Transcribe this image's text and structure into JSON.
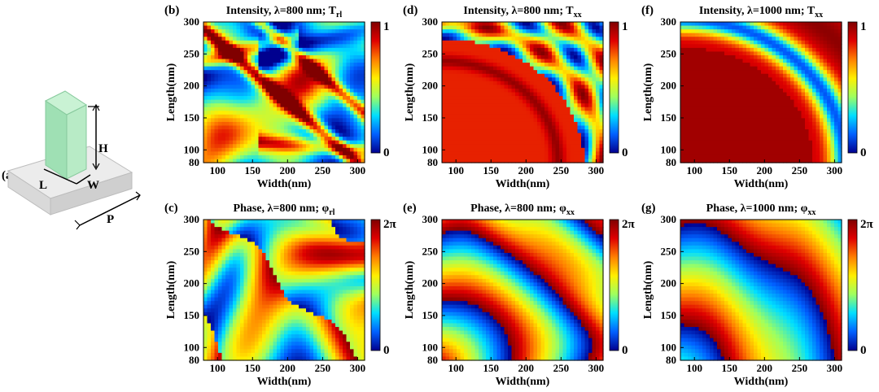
{
  "colormap": [
    "#00008f",
    "#0060ff",
    "#00dfff",
    "#9fff5f",
    "#ffef00",
    "#ff7f00",
    "#df0000",
    "#800000"
  ],
  "schematic": {
    "label": "(a)",
    "dims": {
      "h": "H",
      "l": "L",
      "w": "W",
      "p": "P"
    },
    "pillar_color": "#8fd9a8",
    "base_color": "#e6e6e6"
  },
  "chart_data": [
    {
      "id": "b",
      "type": "heatmap",
      "label": "(b)",
      "title": "Intensity, λ=800 nm; T",
      "title_sub": "rl",
      "xlabel": "Width(nm)",
      "ylabel": "Length(nm)",
      "xlim": [
        80,
        310
      ],
      "ylim": [
        80,
        300
      ],
      "x_ticks": [
        100,
        150,
        200,
        250,
        300
      ],
      "y_ticks": [
        80,
        100,
        150,
        200,
        250,
        300
      ],
      "colorbar": {
        "min_label": "0",
        "max_label": "1",
        "range": [
          0,
          1
        ]
      },
      "pattern": "b"
    },
    {
      "id": "d",
      "type": "heatmap",
      "label": "(d)",
      "title": "Intensity, λ=800 nm; T",
      "title_sub": "xx",
      "xlabel": "Width(nm)",
      "ylabel": "Length(nm)",
      "xlim": [
        80,
        310
      ],
      "ylim": [
        80,
        300
      ],
      "x_ticks": [
        100,
        150,
        200,
        250,
        300
      ],
      "y_ticks": [
        80,
        100,
        150,
        200,
        250,
        300
      ],
      "colorbar": {
        "min_label": "0",
        "max_label": "1",
        "range": [
          0,
          1
        ]
      },
      "pattern": "d"
    },
    {
      "id": "f",
      "type": "heatmap",
      "label": "(f)",
      "title": "Intensity, λ=1000 nm; T",
      "title_sub": "xx",
      "xlabel": "Width(nm)",
      "ylabel": "Length(nm)",
      "xlim": [
        80,
        310
      ],
      "ylim": [
        80,
        300
      ],
      "x_ticks": [
        100,
        150,
        200,
        250,
        300
      ],
      "y_ticks": [
        80,
        100,
        150,
        200,
        250,
        300
      ],
      "colorbar": {
        "min_label": "0",
        "max_label": "1",
        "range": [
          0,
          1
        ]
      },
      "pattern": "f"
    },
    {
      "id": "c",
      "type": "heatmap",
      "label": "(c)",
      "title": "Phase, λ=800 nm; φ",
      "title_sub": "rl",
      "xlabel": "Width(nm)",
      "ylabel": "Length(nm)",
      "xlim": [
        80,
        310
      ],
      "ylim": [
        80,
        300
      ],
      "x_ticks": [
        100,
        150,
        200,
        250,
        300
      ],
      "y_ticks": [
        80,
        100,
        150,
        200,
        250,
        300
      ],
      "colorbar": {
        "min_label": "0",
        "max_label": "2π",
        "range": [
          0,
          6.283
        ]
      },
      "pattern": "c"
    },
    {
      "id": "e",
      "type": "heatmap",
      "label": "(e)",
      "title": "Phase, λ=800 nm; φ",
      "title_sub": "xx",
      "xlabel": "Width(nm)",
      "ylabel": "Length(nm)",
      "xlim": [
        80,
        310
      ],
      "ylim": [
        80,
        300
      ],
      "x_ticks": [
        100,
        150,
        200,
        250,
        300
      ],
      "y_ticks": [
        80,
        100,
        150,
        200,
        250,
        300
      ],
      "colorbar": {
        "min_label": "0",
        "max_label": "2π",
        "range": [
          0,
          6.283
        ]
      },
      "pattern": "e"
    },
    {
      "id": "g",
      "type": "heatmap",
      "label": "(g)",
      "title": "Phase, λ=1000 nm; φ",
      "title_sub": "xx",
      "xlabel": "Width(nm)",
      "ylabel": "Length(nm)",
      "xlim": [
        80,
        310
      ],
      "ylim": [
        80,
        300
      ],
      "x_ticks": [
        100,
        150,
        200,
        250,
        300
      ],
      "y_ticks": [
        80,
        100,
        150,
        200,
        250,
        300
      ],
      "colorbar": {
        "min_label": "0",
        "max_label": "2π",
        "range": [
          0,
          6.283
        ]
      },
      "pattern": "g"
    }
  ]
}
